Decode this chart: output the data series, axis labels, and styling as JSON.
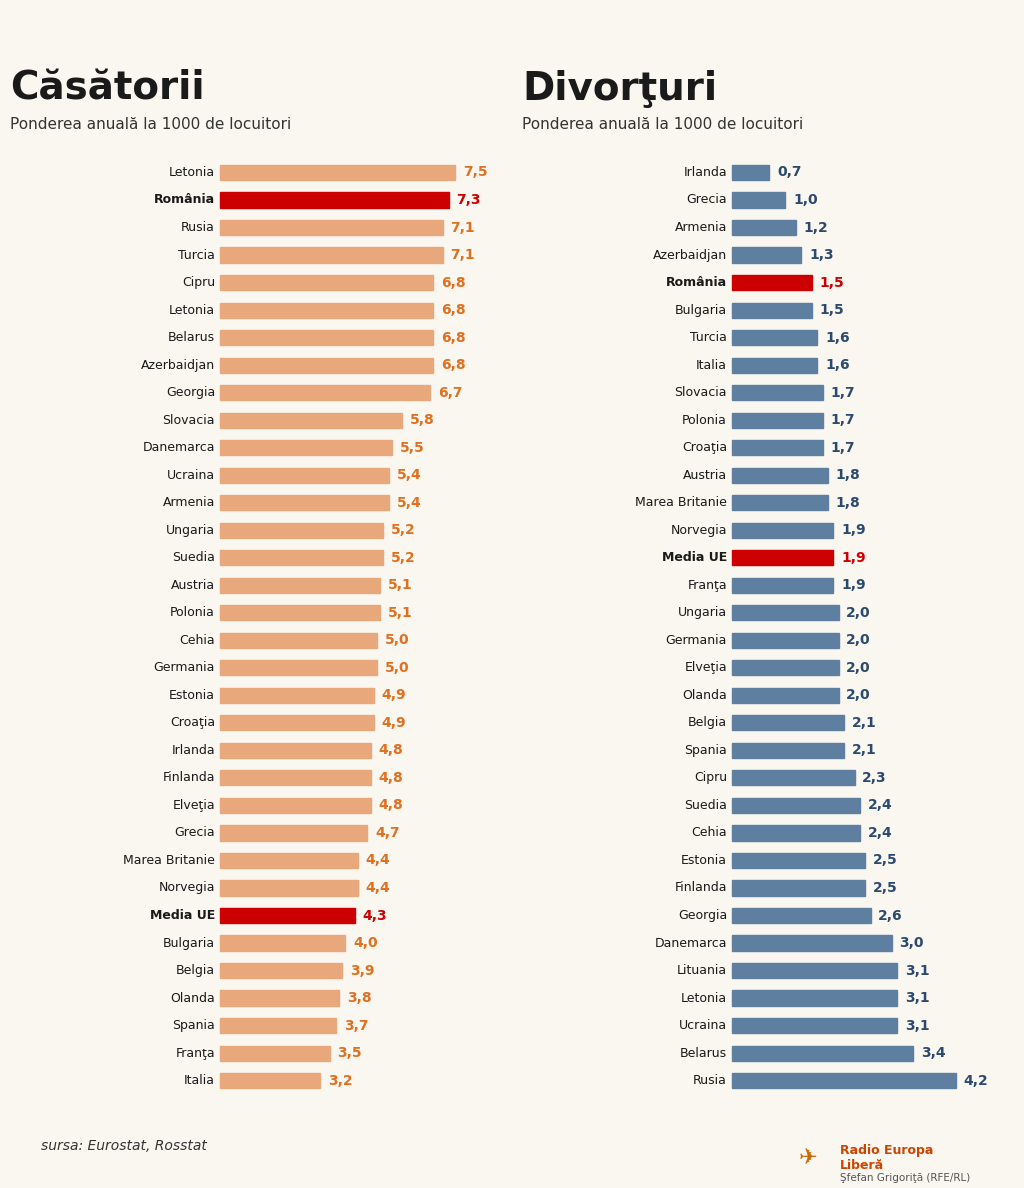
{
  "background_color": "#faf6f0",
  "left_title": "Căsătorii",
  "left_subtitle": "Ponderea anuală la 1000 de locuitori",
  "right_title": "Divorţuri",
  "right_subtitle": "Ponderea anuală la 1000 de locuitori",
  "source_text": "sursa: Eurostat, Rosstat",
  "marriages": {
    "countries": [
      "Letonia",
      "România",
      "Rusia",
      "Turcia",
      "Cipru",
      "Letonia",
      "Belarus",
      "Azerbaidjan",
      "Georgia",
      "Slovacia",
      "Danemarca",
      "Ucraina",
      "Armenia",
      "Ungaria",
      "Suedia",
      "Austria",
      "Polonia",
      "Cehia",
      "Germania",
      "Estonia",
      "Croaţia",
      "Irlanda",
      "Finlanda",
      "Elveţia",
      "Grecia",
      "Marea Britanie",
      "Norvegia",
      "Media UE",
      "Bulgaria",
      "Belgia",
      "Olanda",
      "Spania",
      "Franţa",
      "Italia"
    ],
    "values": [
      7.5,
      7.3,
      7.1,
      7.1,
      6.8,
      6.8,
      6.8,
      6.8,
      6.7,
      5.8,
      5.5,
      5.4,
      5.4,
      5.2,
      5.2,
      5.1,
      5.1,
      5.0,
      5.0,
      4.9,
      4.9,
      4.8,
      4.8,
      4.8,
      4.7,
      4.4,
      4.4,
      4.3,
      4.0,
      3.9,
      3.8,
      3.7,
      3.5,
      3.2
    ],
    "highlight_indices": [
      1,
      27
    ],
    "bar_color": "#e8a87c",
    "highlight_color": "#cc0000",
    "value_color": "#e07020",
    "highlight_value_color": "#cc0000"
  },
  "divorces": {
    "countries": [
      "Irlanda",
      "Grecia",
      "Armenia",
      "Azerbaidjan",
      "România",
      "Bulgaria",
      "Turcia",
      "Italia",
      "Slovacia",
      "Polonia",
      "Croaţia",
      "Austria",
      "Marea Britanie",
      "Norvegia",
      "Media UE",
      "Franţa",
      "Ungaria",
      "Germania",
      "Elveţia",
      "Olanda",
      "Belgia",
      "Spania",
      "Cipru",
      "Suedia",
      "Cehia",
      "Estonia",
      "Finlanda",
      "Georgia",
      "Danemarca",
      "Lituania",
      "Letonia",
      "Ucraina",
      "Belarus",
      "Rusia"
    ],
    "values": [
      0.7,
      1.0,
      1.2,
      1.3,
      1.5,
      1.5,
      1.6,
      1.6,
      1.7,
      1.7,
      1.7,
      1.8,
      1.8,
      1.9,
      1.9,
      1.9,
      2.0,
      2.0,
      2.0,
      2.0,
      2.1,
      2.1,
      2.3,
      2.4,
      2.4,
      2.5,
      2.5,
      2.6,
      3.0,
      3.1,
      3.1,
      3.1,
      3.4,
      4.2
    ],
    "highlight_indices": [
      4,
      14
    ],
    "bar_color": "#5e7fa0",
    "highlight_color": "#cc0000",
    "value_color": "#2c4a6e",
    "highlight_value_color": "#cc0000"
  }
}
